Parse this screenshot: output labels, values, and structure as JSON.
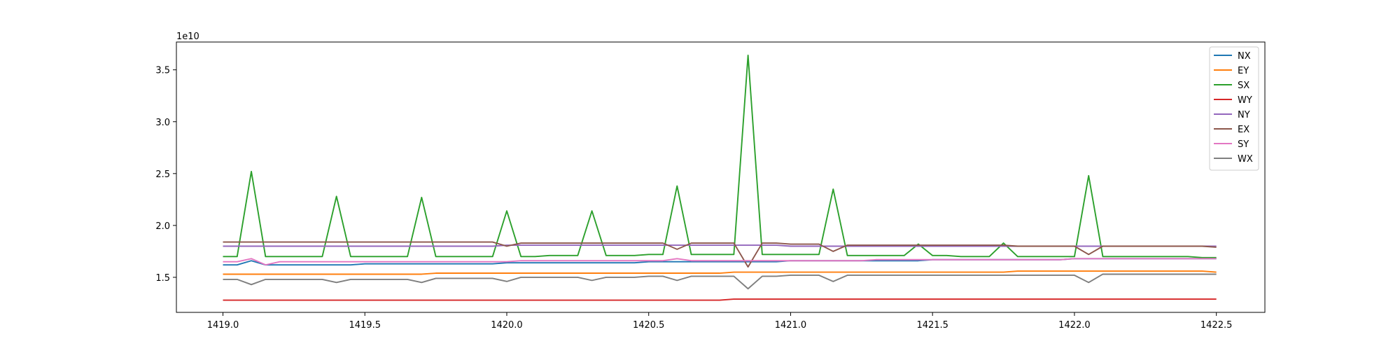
{
  "chart_data": {
    "type": "line",
    "y_offset_label": "1e10",
    "x": [
      1419.0,
      1419.05,
      1419.1,
      1419.15,
      1419.2,
      1419.25,
      1419.3,
      1419.35,
      1419.4,
      1419.45,
      1419.5,
      1419.55,
      1419.6,
      1419.65,
      1419.7,
      1419.75,
      1419.8,
      1419.85,
      1419.9,
      1419.95,
      1420.0,
      1420.05,
      1420.1,
      1420.15,
      1420.2,
      1420.25,
      1420.3,
      1420.35,
      1420.4,
      1420.45,
      1420.5,
      1420.55,
      1420.6,
      1420.65,
      1420.7,
      1420.75,
      1420.8,
      1420.85,
      1420.9,
      1420.95,
      1421.0,
      1421.05,
      1421.1,
      1421.15,
      1421.2,
      1421.25,
      1421.3,
      1421.35,
      1421.4,
      1421.45,
      1421.5,
      1421.55,
      1421.6,
      1421.65,
      1421.7,
      1421.75,
      1421.8,
      1421.85,
      1421.9,
      1421.95,
      1422.0,
      1422.05,
      1422.1,
      1422.15,
      1422.2,
      1422.25,
      1422.3,
      1422.35,
      1422.4,
      1422.45,
      1422.5
    ],
    "series": [
      {
        "name": "NX",
        "color": "#1f77b4",
        "values": [
          1.62,
          1.62,
          1.66,
          1.62,
          1.62,
          1.62,
          1.62,
          1.62,
          1.62,
          1.62,
          1.63,
          1.63,
          1.63,
          1.63,
          1.63,
          1.63,
          1.63,
          1.63,
          1.63,
          1.63,
          1.64,
          1.64,
          1.64,
          1.64,
          1.64,
          1.64,
          1.64,
          1.64,
          1.64,
          1.64,
          1.65,
          1.65,
          1.65,
          1.65,
          1.65,
          1.65,
          1.65,
          1.65,
          1.65,
          1.65,
          1.66,
          1.66,
          1.66,
          1.66,
          1.66,
          1.66,
          1.66,
          1.66,
          1.66,
          1.66,
          1.67,
          1.67,
          1.67,
          1.67,
          1.67,
          1.67,
          1.67,
          1.67,
          1.67,
          1.67,
          1.68,
          1.68,
          1.68,
          1.68,
          1.68,
          1.68,
          1.68,
          1.68,
          1.68,
          1.68,
          1.68
        ]
      },
      {
        "name": "EY",
        "color": "#ff7f0e",
        "values": [
          1.53,
          1.53,
          1.53,
          1.53,
          1.53,
          1.53,
          1.53,
          1.53,
          1.53,
          1.53,
          1.53,
          1.53,
          1.53,
          1.53,
          1.53,
          1.54,
          1.54,
          1.54,
          1.54,
          1.54,
          1.54,
          1.54,
          1.54,
          1.54,
          1.54,
          1.54,
          1.54,
          1.54,
          1.54,
          1.54,
          1.54,
          1.54,
          1.54,
          1.54,
          1.54,
          1.54,
          1.55,
          1.55,
          1.55,
          1.55,
          1.55,
          1.55,
          1.55,
          1.55,
          1.55,
          1.55,
          1.55,
          1.55,
          1.55,
          1.55,
          1.55,
          1.55,
          1.55,
          1.55,
          1.55,
          1.55,
          1.56,
          1.56,
          1.56,
          1.56,
          1.56,
          1.56,
          1.56,
          1.56,
          1.56,
          1.56,
          1.56,
          1.56,
          1.56,
          1.56,
          1.55
        ]
      },
      {
        "name": "SX",
        "color": "#2ca02c",
        "values": [
          1.7,
          1.7,
          2.52,
          1.7,
          1.7,
          1.7,
          1.7,
          1.7,
          2.28,
          1.7,
          1.7,
          1.7,
          1.7,
          1.7,
          2.27,
          1.7,
          1.7,
          1.7,
          1.7,
          1.7,
          2.14,
          1.7,
          1.7,
          1.71,
          1.71,
          1.71,
          2.14,
          1.71,
          1.71,
          1.71,
          1.72,
          1.72,
          2.38,
          1.72,
          1.72,
          1.72,
          1.72,
          3.64,
          1.72,
          1.72,
          1.72,
          1.72,
          1.72,
          2.35,
          1.71,
          1.71,
          1.71,
          1.71,
          1.71,
          1.82,
          1.71,
          1.71,
          1.7,
          1.7,
          1.7,
          1.83,
          1.7,
          1.7,
          1.7,
          1.7,
          1.7,
          2.48,
          1.7,
          1.7,
          1.7,
          1.7,
          1.7,
          1.7,
          1.7,
          1.69,
          1.69
        ]
      },
      {
        "name": "WY",
        "color": "#d62728",
        "values": [
          1.28,
          1.28,
          1.28,
          1.28,
          1.28,
          1.28,
          1.28,
          1.28,
          1.28,
          1.28,
          1.28,
          1.28,
          1.28,
          1.28,
          1.28,
          1.28,
          1.28,
          1.28,
          1.28,
          1.28,
          1.28,
          1.28,
          1.28,
          1.28,
          1.28,
          1.28,
          1.28,
          1.28,
          1.28,
          1.28,
          1.28,
          1.28,
          1.28,
          1.28,
          1.28,
          1.28,
          1.29,
          1.29,
          1.29,
          1.29,
          1.29,
          1.29,
          1.29,
          1.29,
          1.29,
          1.29,
          1.29,
          1.29,
          1.29,
          1.29,
          1.29,
          1.29,
          1.29,
          1.29,
          1.29,
          1.29,
          1.29,
          1.29,
          1.29,
          1.29,
          1.29,
          1.29,
          1.29,
          1.29,
          1.29,
          1.29,
          1.29,
          1.29,
          1.29,
          1.29,
          1.29
        ]
      },
      {
        "name": "NY",
        "color": "#9467bd",
        "values": [
          1.8,
          1.8,
          1.8,
          1.8,
          1.8,
          1.8,
          1.8,
          1.8,
          1.8,
          1.8,
          1.8,
          1.8,
          1.8,
          1.8,
          1.8,
          1.8,
          1.8,
          1.8,
          1.8,
          1.8,
          1.81,
          1.81,
          1.81,
          1.81,
          1.81,
          1.81,
          1.81,
          1.81,
          1.81,
          1.81,
          1.81,
          1.81,
          1.81,
          1.81,
          1.81,
          1.81,
          1.81,
          1.81,
          1.81,
          1.81,
          1.8,
          1.8,
          1.8,
          1.8,
          1.8,
          1.8,
          1.8,
          1.8,
          1.8,
          1.8,
          1.8,
          1.8,
          1.8,
          1.8,
          1.8,
          1.8,
          1.8,
          1.8,
          1.8,
          1.8,
          1.8,
          1.8,
          1.8,
          1.8,
          1.8,
          1.8,
          1.8,
          1.8,
          1.8,
          1.8,
          1.8
        ]
      },
      {
        "name": "EX",
        "color": "#8c564b",
        "values": [
          1.84,
          1.84,
          1.84,
          1.84,
          1.84,
          1.84,
          1.84,
          1.84,
          1.84,
          1.84,
          1.84,
          1.84,
          1.84,
          1.84,
          1.84,
          1.84,
          1.84,
          1.84,
          1.84,
          1.84,
          1.8,
          1.83,
          1.83,
          1.83,
          1.83,
          1.83,
          1.83,
          1.83,
          1.83,
          1.83,
          1.83,
          1.83,
          1.77,
          1.83,
          1.83,
          1.83,
          1.83,
          1.6,
          1.83,
          1.83,
          1.82,
          1.82,
          1.82,
          1.75,
          1.81,
          1.81,
          1.81,
          1.81,
          1.81,
          1.81,
          1.81,
          1.81,
          1.81,
          1.81,
          1.81,
          1.81,
          1.8,
          1.8,
          1.8,
          1.8,
          1.8,
          1.72,
          1.8,
          1.8,
          1.8,
          1.8,
          1.8,
          1.8,
          1.8,
          1.8,
          1.79
        ]
      },
      {
        "name": "SY",
        "color": "#e377c2",
        "values": [
          1.65,
          1.65,
          1.68,
          1.62,
          1.65,
          1.65,
          1.65,
          1.65,
          1.65,
          1.65,
          1.65,
          1.65,
          1.65,
          1.65,
          1.65,
          1.65,
          1.65,
          1.65,
          1.65,
          1.65,
          1.65,
          1.66,
          1.66,
          1.66,
          1.66,
          1.66,
          1.66,
          1.66,
          1.66,
          1.66,
          1.66,
          1.66,
          1.68,
          1.66,
          1.66,
          1.66,
          1.66,
          1.66,
          1.66,
          1.66,
          1.66,
          1.66,
          1.66,
          1.66,
          1.66,
          1.66,
          1.67,
          1.67,
          1.67,
          1.67,
          1.67,
          1.67,
          1.67,
          1.67,
          1.67,
          1.67,
          1.67,
          1.67,
          1.67,
          1.67,
          1.68,
          1.68,
          1.68,
          1.68,
          1.68,
          1.68,
          1.68,
          1.68,
          1.68,
          1.68,
          1.68
        ]
      },
      {
        "name": "WX",
        "color": "#7f7f7f",
        "values": [
          1.48,
          1.48,
          1.43,
          1.48,
          1.48,
          1.48,
          1.48,
          1.48,
          1.45,
          1.48,
          1.48,
          1.48,
          1.48,
          1.48,
          1.45,
          1.49,
          1.49,
          1.49,
          1.49,
          1.49,
          1.46,
          1.5,
          1.5,
          1.5,
          1.5,
          1.5,
          1.47,
          1.5,
          1.5,
          1.5,
          1.51,
          1.51,
          1.47,
          1.51,
          1.51,
          1.51,
          1.51,
          1.39,
          1.51,
          1.51,
          1.52,
          1.52,
          1.52,
          1.46,
          1.52,
          1.52,
          1.52,
          1.52,
          1.52,
          1.52,
          1.52,
          1.52,
          1.52,
          1.52,
          1.52,
          1.52,
          1.52,
          1.52,
          1.52,
          1.52,
          1.52,
          1.45,
          1.53,
          1.53,
          1.53,
          1.53,
          1.53,
          1.53,
          1.53,
          1.53,
          1.53
        ]
      }
    ],
    "xlim": [
      1418.836,
      1422.671
    ],
    "ylim": [
      1.162,
      3.768
    ],
    "xticks": [
      {
        "value": 1419,
        "label": "1419.0"
      },
      1419.5,
      {
        "value": 1420,
        "label": "1420.0"
      },
      1420.5,
      {
        "value": 1421,
        "label": "1421.0"
      },
      1421.5,
      {
        "value": 1422,
        "label": "1422.0"
      },
      1422.5
    ],
    "yticks": [
      1.5,
      {
        "value": 2,
        "label": "2.0"
      },
      2.5,
      {
        "value": 3,
        "label": "3.0"
      },
      3.5
    ],
    "legend": "upper right",
    "grid": false
  }
}
